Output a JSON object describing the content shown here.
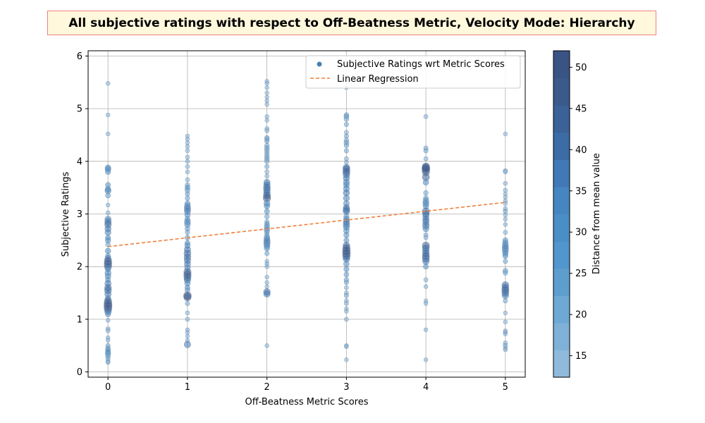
{
  "chart_data": {
    "type": "scatter",
    "title": "All subjective ratings with respect to Off-Beatness Metric, Velocity Mode: Hierarchy",
    "xlabel": "Off-Beatness Metric Scores",
    "ylabel": "Subjective Ratings",
    "xlim": [
      -0.25,
      5.25
    ],
    "ylim": [
      -0.1,
      6.1
    ],
    "xticks": [
      0,
      1,
      2,
      3,
      4,
      5
    ],
    "yticks": [
      0,
      1,
      2,
      3,
      4,
      5,
      6
    ],
    "grid": true,
    "legend": {
      "placement": "upper right",
      "entries": [
        {
          "label": "Subjective Ratings wrt Metric Scores",
          "marker": "point"
        },
        {
          "label": "Linear Regression",
          "marker": "dashed-line"
        }
      ]
    },
    "regression": {
      "x": [
        0,
        5
      ],
      "y": [
        2.38,
        3.22
      ],
      "color": "#f0803c"
    },
    "colorbar": {
      "label": "Distance from mean value",
      "range": [
        12.4,
        52
      ],
      "ticks": [
        15,
        20,
        25,
        30,
        35,
        40,
        45,
        50
      ],
      "colors": [
        "#8fbadc",
        "#7fb1d8",
        "#6ea8d4",
        "#5e9ecf",
        "#5196cc",
        "#4a8ec6",
        "#4686c0",
        "#4079b6",
        "#3b6ca6",
        "#3a6298",
        "#3a5a8c",
        "#3a5385"
      ]
    },
    "series": [
      {
        "x": 0,
        "points": [
          [
            5.48,
            16
          ],
          [
            4.88,
            16
          ],
          [
            4.52,
            16
          ],
          [
            3.88,
            30
          ],
          [
            3.85,
            32
          ],
          [
            3.8,
            28
          ],
          [
            3.55,
            26
          ],
          [
            3.47,
            30
          ],
          [
            3.44,
            34
          ],
          [
            3.35,
            24
          ],
          [
            3.17,
            16
          ],
          [
            3.02,
            18
          ],
          [
            2.9,
            36
          ],
          [
            2.85,
            38
          ],
          [
            2.8,
            40
          ],
          [
            2.72,
            36
          ],
          [
            2.65,
            34
          ],
          [
            2.55,
            26
          ],
          [
            2.5,
            30
          ],
          [
            2.42,
            22
          ],
          [
            2.3,
            30
          ],
          [
            2.2,
            26
          ],
          [
            2.15,
            38
          ],
          [
            2.1,
            46
          ],
          [
            2.05,
            48
          ],
          [
            2.0,
            44
          ],
          [
            1.95,
            28
          ],
          [
            1.88,
            34
          ],
          [
            1.82,
            32
          ],
          [
            1.75,
            26
          ],
          [
            1.68,
            36
          ],
          [
            1.6,
            40
          ],
          [
            1.55,
            42
          ],
          [
            1.48,
            38
          ],
          [
            1.4,
            30
          ],
          [
            1.35,
            44
          ],
          [
            1.3,
            50
          ],
          [
            1.25,
            52
          ],
          [
            1.2,
            48
          ],
          [
            1.15,
            40
          ],
          [
            1.1,
            30
          ],
          [
            0.98,
            16
          ],
          [
            0.82,
            18
          ],
          [
            0.78,
            18
          ],
          [
            0.65,
            16
          ],
          [
            0.6,
            16
          ],
          [
            0.5,
            20
          ],
          [
            0.45,
            22
          ],
          [
            0.42,
            24
          ],
          [
            0.38,
            26
          ],
          [
            0.35,
            28
          ],
          [
            0.3,
            24
          ],
          [
            0.25,
            20
          ],
          [
            0.2,
            18
          ],
          [
            0.18,
            16
          ]
        ]
      },
      {
        "x": 1,
        "points": [
          [
            4.48,
            16
          ],
          [
            4.42,
            16
          ],
          [
            4.35,
            16
          ],
          [
            4.28,
            16
          ],
          [
            4.2,
            18
          ],
          [
            4.08,
            18
          ],
          [
            4.0,
            16
          ],
          [
            3.9,
            18
          ],
          [
            3.8,
            16
          ],
          [
            3.65,
            18
          ],
          [
            3.55,
            22
          ],
          [
            3.5,
            26
          ],
          [
            3.45,
            24
          ],
          [
            3.38,
            20
          ],
          [
            3.3,
            22
          ],
          [
            3.2,
            28
          ],
          [
            3.15,
            34
          ],
          [
            3.1,
            38
          ],
          [
            3.05,
            36
          ],
          [
            2.98,
            30
          ],
          [
            2.9,
            26
          ],
          [
            2.85,
            34
          ],
          [
            2.8,
            32
          ],
          [
            2.72,
            24
          ],
          [
            2.65,
            20
          ],
          [
            2.55,
            24
          ],
          [
            2.45,
            26
          ],
          [
            2.4,
            30
          ],
          [
            2.32,
            38
          ],
          [
            2.25,
            42
          ],
          [
            2.18,
            40
          ],
          [
            2.12,
            38
          ],
          [
            2.05,
            36
          ],
          [
            1.98,
            32
          ],
          [
            1.9,
            44
          ],
          [
            1.85,
            46
          ],
          [
            1.8,
            44
          ],
          [
            1.75,
            40
          ],
          [
            1.68,
            30
          ],
          [
            1.6,
            26
          ],
          [
            1.55,
            24
          ],
          [
            1.45,
            48
          ],
          [
            1.42,
            46
          ],
          [
            1.3,
            20
          ],
          [
            1.12,
            18
          ],
          [
            1.0,
            18
          ],
          [
            0.8,
            16
          ],
          [
            0.75,
            16
          ],
          [
            0.68,
            16
          ],
          [
            0.6,
            16
          ],
          [
            0.52,
            38
          ]
        ]
      },
      {
        "x": 2,
        "points": [
          [
            5.52,
            16
          ],
          [
            5.48,
            16
          ],
          [
            5.4,
            16
          ],
          [
            5.3,
            16
          ],
          [
            5.22,
            16
          ],
          [
            5.15,
            16
          ],
          [
            5.08,
            16
          ],
          [
            4.85,
            16
          ],
          [
            4.78,
            16
          ],
          [
            4.62,
            18
          ],
          [
            4.58,
            18
          ],
          [
            4.45,
            20
          ],
          [
            4.42,
            22
          ],
          [
            4.38,
            20
          ],
          [
            4.3,
            22
          ],
          [
            4.25,
            24
          ],
          [
            4.2,
            22
          ],
          [
            4.15,
            20
          ],
          [
            4.1,
            22
          ],
          [
            4.05,
            24
          ],
          [
            4.0,
            22
          ],
          [
            3.9,
            20
          ],
          [
            3.8,
            18
          ],
          [
            3.72,
            18
          ],
          [
            3.6,
            36
          ],
          [
            3.55,
            38
          ],
          [
            3.5,
            42
          ],
          [
            3.45,
            40
          ],
          [
            3.4,
            38
          ],
          [
            3.35,
            44
          ],
          [
            3.3,
            46
          ],
          [
            3.2,
            34
          ],
          [
            3.15,
            30
          ],
          [
            3.05,
            26
          ],
          [
            2.95,
            22
          ],
          [
            2.85,
            20
          ],
          [
            2.8,
            26
          ],
          [
            2.75,
            28
          ],
          [
            2.7,
            30
          ],
          [
            2.65,
            24
          ],
          [
            2.6,
            20
          ],
          [
            2.55,
            32
          ],
          [
            2.5,
            36
          ],
          [
            2.45,
            38
          ],
          [
            2.4,
            34
          ],
          [
            2.35,
            30
          ],
          [
            2.25,
            20
          ],
          [
            2.1,
            16
          ],
          [
            2.05,
            16
          ],
          [
            2.0,
            16
          ],
          [
            1.8,
            16
          ],
          [
            1.7,
            16
          ],
          [
            1.62,
            16
          ],
          [
            1.52,
            40
          ],
          [
            1.48,
            38
          ],
          [
            0.5,
            16
          ]
        ]
      },
      {
        "x": 3,
        "points": [
          [
            5.4,
            16
          ],
          [
            4.88,
            22
          ],
          [
            4.85,
            24
          ],
          [
            4.8,
            22
          ],
          [
            4.7,
            20
          ],
          [
            4.55,
            18
          ],
          [
            4.48,
            20
          ],
          [
            4.4,
            22
          ],
          [
            4.35,
            24
          ],
          [
            4.3,
            22
          ],
          [
            4.2,
            20
          ],
          [
            4.05,
            18
          ],
          [
            3.98,
            18
          ],
          [
            3.88,
            40
          ],
          [
            3.85,
            42
          ],
          [
            3.8,
            44
          ],
          [
            3.75,
            40
          ],
          [
            3.68,
            36
          ],
          [
            3.6,
            34
          ],
          [
            3.55,
            32
          ],
          [
            3.48,
            34
          ],
          [
            3.4,
            36
          ],
          [
            3.3,
            34
          ],
          [
            3.2,
            32
          ],
          [
            3.12,
            36
          ],
          [
            3.08,
            40
          ],
          [
            3.05,
            38
          ],
          [
            2.95,
            28
          ],
          [
            2.9,
            32
          ],
          [
            2.85,
            36
          ],
          [
            2.8,
            38
          ],
          [
            2.75,
            34
          ],
          [
            2.68,
            30
          ],
          [
            2.6,
            28
          ],
          [
            2.5,
            26
          ],
          [
            2.4,
            40
          ],
          [
            2.35,
            46
          ],
          [
            2.3,
            48
          ],
          [
            2.25,
            50
          ],
          [
            2.2,
            46
          ],
          [
            2.15,
            40
          ],
          [
            2.05,
            30
          ],
          [
            1.95,
            26
          ],
          [
            1.85,
            24
          ],
          [
            1.75,
            22
          ],
          [
            1.7,
            20
          ],
          [
            1.6,
            18
          ],
          [
            1.5,
            18
          ],
          [
            1.45,
            20
          ],
          [
            1.35,
            18
          ],
          [
            1.3,
            18
          ],
          [
            1.2,
            16
          ],
          [
            1.15,
            16
          ],
          [
            1.0,
            18
          ],
          [
            0.5,
            16
          ],
          [
            0.48,
            16
          ],
          [
            0.23,
            16
          ]
        ]
      },
      {
        "x": 4,
        "points": [
          [
            4.85,
            18
          ],
          [
            4.25,
            20
          ],
          [
            4.2,
            20
          ],
          [
            4.05,
            18
          ],
          [
            3.9,
            44
          ],
          [
            3.88,
            48
          ],
          [
            3.85,
            50
          ],
          [
            3.8,
            46
          ],
          [
            3.7,
            44
          ],
          [
            3.6,
            30
          ],
          [
            3.4,
            22
          ],
          [
            3.3,
            24
          ],
          [
            3.25,
            32
          ],
          [
            3.2,
            34
          ],
          [
            3.15,
            30
          ],
          [
            3.05,
            44
          ],
          [
            3.0,
            40
          ],
          [
            2.95,
            34
          ],
          [
            2.9,
            36
          ],
          [
            2.85,
            38
          ],
          [
            2.78,
            40
          ],
          [
            2.72,
            34
          ],
          [
            2.6,
            20
          ],
          [
            2.55,
            18
          ],
          [
            2.4,
            44
          ],
          [
            2.35,
            42
          ],
          [
            2.3,
            38
          ],
          [
            2.25,
            40
          ],
          [
            2.2,
            44
          ],
          [
            2.15,
            42
          ],
          [
            2.1,
            38
          ],
          [
            2.0,
            26
          ],
          [
            1.75,
            18
          ],
          [
            1.62,
            16
          ],
          [
            1.35,
            16
          ],
          [
            1.3,
            16
          ],
          [
            0.8,
            16
          ],
          [
            0.23,
            16
          ]
        ]
      },
      {
        "x": 5,
        "points": [
          [
            4.52,
            16
          ],
          [
            3.82,
            18
          ],
          [
            3.8,
            18
          ],
          [
            3.58,
            18
          ],
          [
            3.45,
            18
          ],
          [
            3.38,
            16
          ],
          [
            3.32,
            16
          ],
          [
            3.25,
            16
          ],
          [
            3.2,
            18
          ],
          [
            3.1,
            18
          ],
          [
            3.05,
            20
          ],
          [
            2.98,
            18
          ],
          [
            2.9,
            16
          ],
          [
            2.8,
            16
          ],
          [
            2.65,
            18
          ],
          [
            2.5,
            26
          ],
          [
            2.45,
            30
          ],
          [
            2.4,
            34
          ],
          [
            2.35,
            38
          ],
          [
            2.3,
            34
          ],
          [
            2.25,
            30
          ],
          [
            2.2,
            26
          ],
          [
            2.1,
            20
          ],
          [
            1.92,
            24
          ],
          [
            1.88,
            22
          ],
          [
            1.65,
            40
          ],
          [
            1.6,
            42
          ],
          [
            1.55,
            44
          ],
          [
            1.5,
            42
          ],
          [
            1.45,
            38
          ],
          [
            1.35,
            20
          ],
          [
            1.12,
            16
          ],
          [
            0.95,
            16
          ],
          [
            0.78,
            16
          ],
          [
            0.75,
            16
          ],
          [
            0.72,
            16
          ],
          [
            0.55,
            18
          ],
          [
            0.5,
            20
          ],
          [
            0.45,
            16
          ],
          [
            0.42,
            16
          ]
        ]
      }
    ]
  }
}
